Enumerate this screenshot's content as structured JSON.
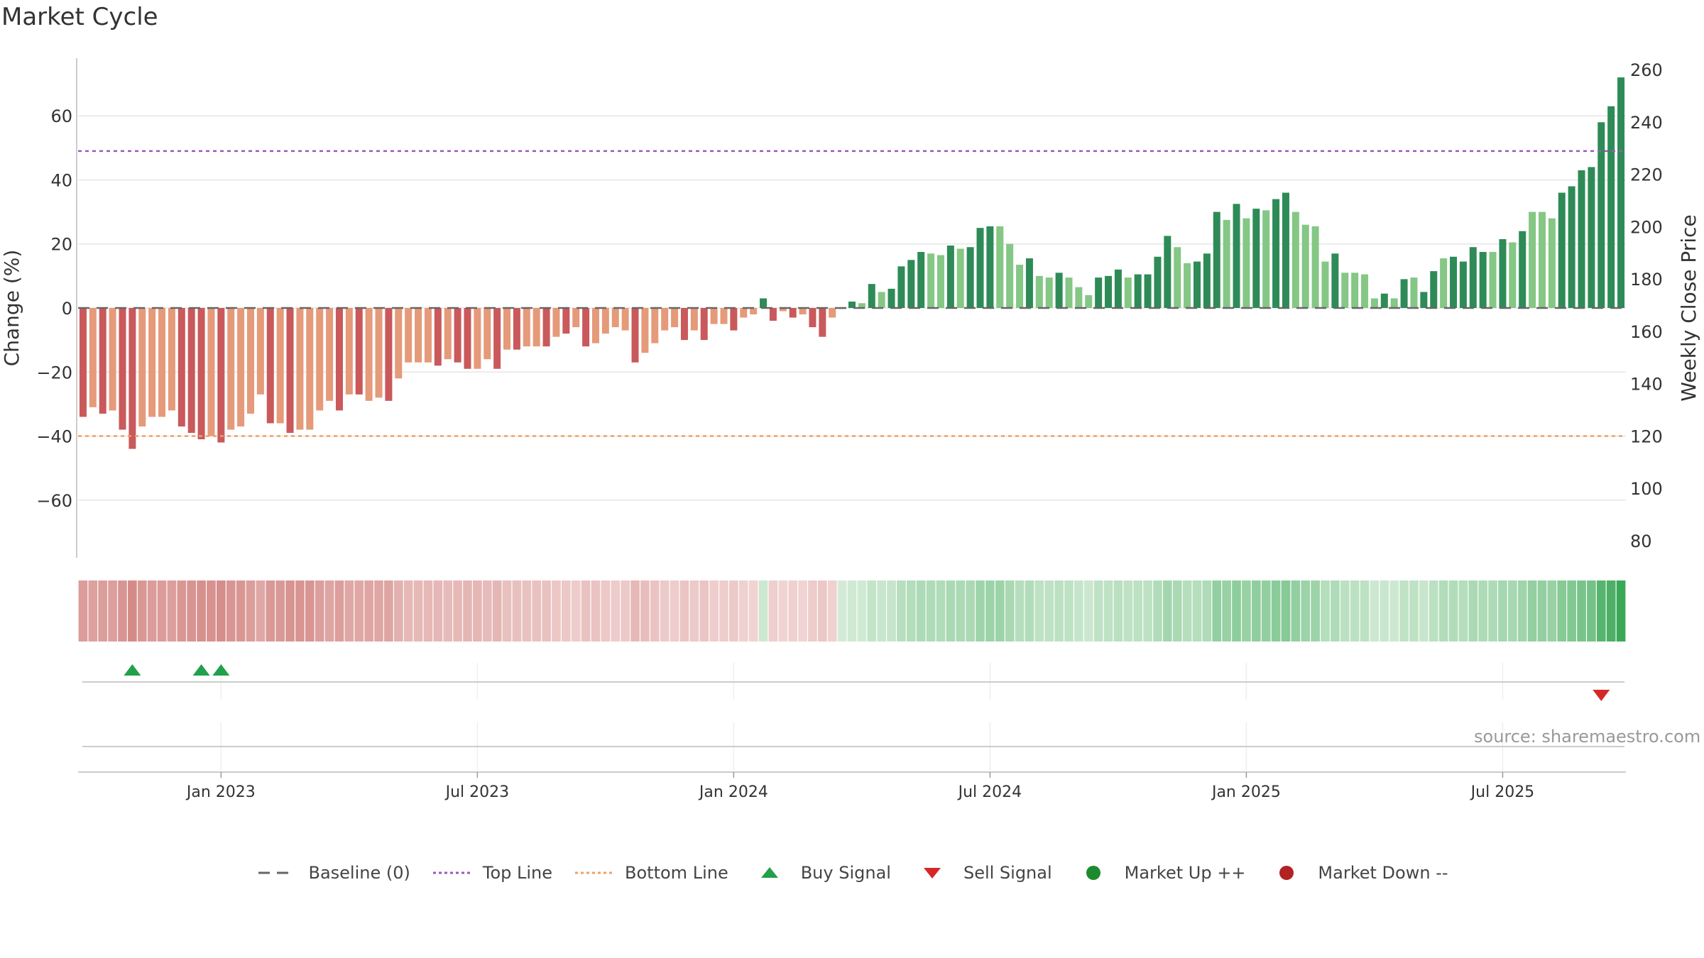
{
  "chart_data": {
    "type": "bar",
    "title": "Market Cycle",
    "source": "source: sharemaestro.com",
    "ylabel_left": "Change (%)",
    "ylabel_right": "Weekly Close Price",
    "y_left_ticks": [
      "60",
      "40",
      "20",
      "0",
      "−20",
      "−40",
      "−60"
    ],
    "y_left_tick_values": [
      60,
      40,
      20,
      0,
      -20,
      -40,
      -60
    ],
    "y_left_range": [
      -78,
      78
    ],
    "y_right_ticks": [
      "260",
      "240",
      "220",
      "200",
      "180",
      "160",
      "140",
      "120",
      "100",
      "80"
    ],
    "x_ticks": [
      "Jan 2023",
      "Jul 2023",
      "Jan 2024",
      "Jul 2024",
      "Jan 2025",
      "Jul 2025"
    ],
    "x_tick_week_index": [
      14.5,
      40.5,
      66.5,
      92.5,
      118.5,
      144.5
    ],
    "grid": true,
    "top_line": 49,
    "bottom_line": -40,
    "baseline": 0,
    "colors": {
      "strong_down": "#c9595b",
      "weak_down": "#e59a7a",
      "strong_up": "#2e8b57",
      "weak_up": "#85c785",
      "top_line": "#9b59b6",
      "bottom_line": "#f0a060",
      "baseline": "#666666",
      "buy": "#22a04a",
      "sell": "#d62728",
      "market_up": "#1e8a2e",
      "market_down": "#b22222"
    },
    "values": [
      -34,
      -31,
      -33,
      -32,
      -38,
      -44,
      -37,
      -34,
      -34,
      -32,
      -37,
      -39,
      -41,
      -40,
      -42,
      -38,
      -37,
      -33,
      -27,
      -36,
      -36,
      -39,
      -38,
      -38,
      -32,
      -29,
      -32,
      -27,
      -27,
      -29,
      -28,
      -29,
      -22,
      -17,
      -17,
      -17,
      -18,
      -16,
      -17,
      -19,
      -19,
      -16,
      -19,
      -13,
      -13,
      -12,
      -12,
      -12,
      -9,
      -8,
      -6,
      -12,
      -11,
      -8,
      -6,
      -7,
      -17,
      -14,
      -11,
      -7,
      -6,
      -10,
      -7,
      -10,
      -5,
      -5,
      -7,
      -3,
      -2,
      3,
      -4,
      -1,
      -3,
      -2,
      -6,
      -9,
      -3,
      0,
      2,
      1.5,
      7.5,
      5,
      6,
      13,
      15,
      17.5,
      17,
      16.5,
      19.5,
      18.5,
      19,
      25,
      25.5,
      25.5,
      20,
      13.5,
      15.5,
      10,
      9.5,
      11,
      9.5,
      6.5,
      4,
      9.5,
      10,
      12,
      9.5,
      10.5,
      10.5,
      16,
      22.5,
      19,
      14,
      14.5,
      17,
      30,
      27.5,
      32.5,
      28,
      31,
      30.5,
      34,
      36,
      30,
      26,
      25.5,
      14.5,
      17,
      11,
      11,
      10.5,
      3,
      4.5,
      3,
      9,
      9.5,
      5,
      11.5,
      15.5,
      16,
      14.5,
      19,
      17.5,
      17.5,
      21.5,
      20.5,
      24,
      30,
      30,
      28,
      36,
      38,
      43,
      44,
      58,
      63,
      72
    ],
    "strength": [
      "s",
      "w",
      "s",
      "w",
      "s",
      "s",
      "w",
      "w",
      "w",
      "w",
      "s",
      "s",
      "s",
      "w",
      "s",
      "w",
      "w",
      "w",
      "w",
      "s",
      "w",
      "s",
      "w",
      "w",
      "w",
      "w",
      "s",
      "w",
      "s",
      "w",
      "w",
      "s",
      "w",
      "w",
      "w",
      "w",
      "s",
      "w",
      "s",
      "s",
      "w",
      "w",
      "s",
      "w",
      "s",
      "w",
      "w",
      "s",
      "w",
      "s",
      "w",
      "s",
      "w",
      "w",
      "w",
      "w",
      "s",
      "w",
      "w",
      "w",
      "w",
      "s",
      "w",
      "s",
      "w",
      "w",
      "s",
      "w",
      "w",
      "s",
      "s",
      "w",
      "s",
      "w",
      "s",
      "s",
      "w",
      "w",
      "s",
      "w",
      "s",
      "w",
      "s",
      "s",
      "s",
      "s",
      "w",
      "w",
      "s",
      "w",
      "s",
      "s",
      "s",
      "w",
      "w",
      "w",
      "s",
      "w",
      "w",
      "s",
      "w",
      "w",
      "w",
      "s",
      "s",
      "s",
      "w",
      "s",
      "s",
      "s",
      "s",
      "w",
      "w",
      "s",
      "s",
      "s",
      "w",
      "s",
      "w",
      "s",
      "w",
      "s",
      "s",
      "w",
      "w",
      "w",
      "w",
      "s",
      "w",
      "w",
      "w",
      "w",
      "s",
      "w",
      "s",
      "w",
      "s",
      "s",
      "w",
      "s",
      "s",
      "s",
      "s",
      "w",
      "s",
      "w",
      "s",
      "w",
      "w",
      "w",
      "s",
      "s",
      "s",
      "s",
      "s",
      "s",
      "s"
    ],
    "buy_signal_week_index": [
      5,
      12,
      14
    ],
    "sell_signal_week_index": [
      154
    ],
    "legend": [
      {
        "label": "Baseline (0)",
        "kind": "dash",
        "color": "#666666"
      },
      {
        "label": "Top Line",
        "kind": "dot",
        "color": "#9b59b6"
      },
      {
        "label": "Bottom Line",
        "kind": "dot",
        "color": "#f0a060"
      },
      {
        "label": "Buy Signal",
        "kind": "tri-up",
        "color": "#22a04a"
      },
      {
        "label": "Sell Signal",
        "kind": "tri-down",
        "color": "#d62728"
      },
      {
        "label": "Market Up ++",
        "kind": "circle",
        "color": "#1e8a2e"
      },
      {
        "label": "Market Down --",
        "kind": "circle",
        "color": "#b22222"
      }
    ]
  }
}
